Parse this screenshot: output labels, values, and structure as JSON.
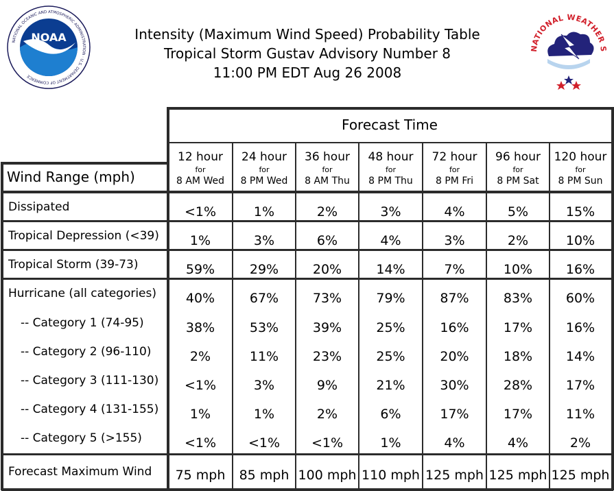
{
  "title": {
    "line1": "Intensity (Maximum Wind Speed) Probability Table",
    "line2": "Tropical Storm Gustav Advisory Number 8",
    "line3": "11:00 PM EDT Aug 26 2008"
  },
  "logos": {
    "noaa_text": "NOAA",
    "noaa_ring": "NATIONAL OCEANIC AND ATMOSPHERIC ADMINISTRATION · U.S. DEPARTMENT OF COMMERCE",
    "nws_ring": "NATIONAL WEATHER SERVICE"
  },
  "table": {
    "forecast_time_label": "Forecast Time",
    "wind_range_label": "Wind Range (mph)",
    "columns": [
      {
        "hour": "12 hour",
        "for": "for",
        "when": "8 AM Wed"
      },
      {
        "hour": "24 hour",
        "for": "for",
        "when": "8 PM Wed"
      },
      {
        "hour": "36 hour",
        "for": "for",
        "when": "8 AM Thu"
      },
      {
        "hour": "48 hour",
        "for": "for",
        "when": "8 PM Thu"
      },
      {
        "hour": "72 hour",
        "for": "for",
        "when": "8 PM Fri"
      },
      {
        "hour": "96 hour",
        "for": "for",
        "when": "8 PM Sat"
      },
      {
        "hour": "120 hour",
        "for": "for",
        "when": "8 PM Sun"
      }
    ],
    "rows": [
      {
        "label": "Dissipated",
        "values": [
          "<1%",
          "1%",
          "2%",
          "3%",
          "4%",
          "5%",
          "15%"
        ]
      },
      {
        "label": "Tropical Depression (<39)",
        "values": [
          "1%",
          "3%",
          "6%",
          "4%",
          "3%",
          "2%",
          "10%"
        ]
      },
      {
        "label": "Tropical Storm (39-73)",
        "values": [
          "59%",
          "29%",
          "20%",
          "14%",
          "7%",
          "10%",
          "16%"
        ]
      },
      {
        "label": "Hurricane (all categories)",
        "values": [
          "40%",
          "67%",
          "73%",
          "79%",
          "87%",
          "83%",
          "60%"
        ]
      },
      {
        "label": "-- Category 1 (74-95)",
        "values": [
          "38%",
          "53%",
          "39%",
          "25%",
          "16%",
          "17%",
          "16%"
        ]
      },
      {
        "label": "-- Category 2 (96-110)",
        "values": [
          "2%",
          "11%",
          "23%",
          "25%",
          "20%",
          "18%",
          "14%"
        ]
      },
      {
        "label": "-- Category 3 (111-130)",
        "values": [
          "<1%",
          "3%",
          "9%",
          "21%",
          "30%",
          "28%",
          "17%"
        ]
      },
      {
        "label": "-- Category 4 (131-155)",
        "values": [
          "1%",
          "1%",
          "2%",
          "6%",
          "17%",
          "17%",
          "11%"
        ]
      },
      {
        "label": "-- Category 5 (>155)",
        "values": [
          "<1%",
          "<1%",
          "<1%",
          "1%",
          "4%",
          "4%",
          "2%"
        ]
      }
    ],
    "max_wind": {
      "label": "Forecast Maximum Wind",
      "values": [
        "75 mph",
        "85 mph",
        "100 mph",
        "110 mph",
        "125 mph",
        "125 mph",
        "125 mph"
      ]
    }
  }
}
